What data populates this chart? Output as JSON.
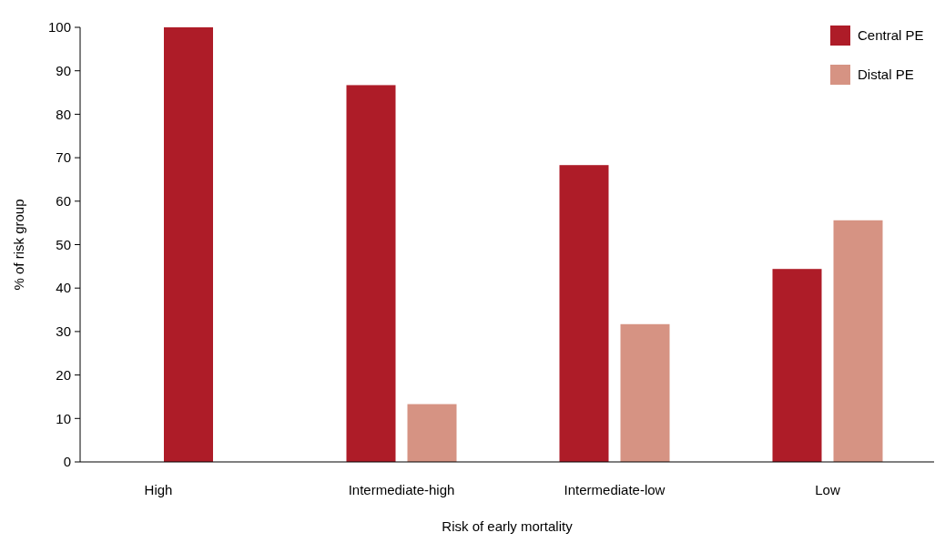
{
  "chart_data": {
    "type": "bar",
    "xlabel": "Risk of early mortality",
    "ylabel": "% of risk group",
    "categories": [
      "High",
      "Intermediate-high",
      "Intermediate-low",
      "Low"
    ],
    "series": [
      {
        "name": "Central PE",
        "color": "#ae1c28",
        "values": [
          100,
          86.7,
          68.3,
          44.4
        ]
      },
      {
        "name": "Distal PE",
        "color": "#d69383",
        "values": [
          null,
          13.3,
          31.7,
          55.6
        ]
      }
    ],
    "ylim": [
      0,
      100
    ],
    "yticks": [
      0,
      10,
      20,
      30,
      40,
      50,
      60,
      70,
      80,
      90,
      100
    ],
    "grid": false,
    "legend": "top right"
  }
}
